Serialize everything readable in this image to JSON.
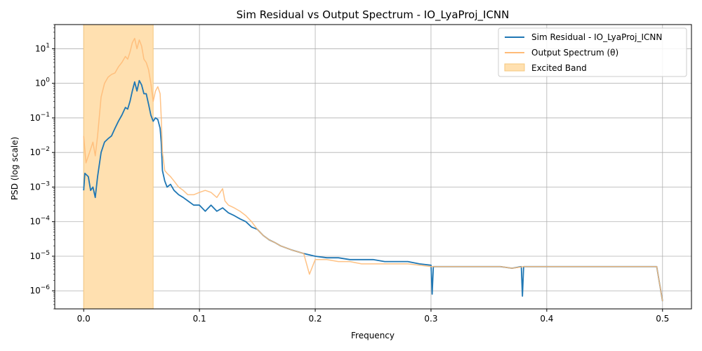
{
  "chart_data": {
    "type": "line",
    "title": "Sim Residual vs Output Spectrum - IO_LyaProj_ICNN",
    "xlabel": "Frequency",
    "ylabel": "PSD (log scale)",
    "xlim": [
      -0.025,
      0.525
    ],
    "ylim": [
      3e-07,
      50
    ],
    "yscale": "log",
    "grid": true,
    "legend_position": "top-right",
    "x_ticks": [
      {
        "value": 0.0,
        "label": "0.0"
      },
      {
        "value": 0.1,
        "label": "0.1"
      },
      {
        "value": 0.2,
        "label": "0.2"
      },
      {
        "value": 0.3,
        "label": "0.3"
      },
      {
        "value": 0.4,
        "label": "0.4"
      },
      {
        "value": 0.5,
        "label": "0.5"
      }
    ],
    "y_ticks": [
      {
        "value": 1e-06,
        "base": "10",
        "exp": "−6"
      },
      {
        "value": 1e-05,
        "base": "10",
        "exp": "−5"
      },
      {
        "value": 0.0001,
        "base": "10",
        "exp": "−4"
      },
      {
        "value": 0.001,
        "base": "10",
        "exp": "−3"
      },
      {
        "value": 0.01,
        "base": "10",
        "exp": "−2"
      },
      {
        "value": 0.1,
        "base": "10",
        "exp": "−1"
      },
      {
        "value": 1,
        "base": "10",
        "exp": "0"
      },
      {
        "value": 10,
        "base": "10",
        "exp": "1"
      }
    ],
    "band": {
      "name": "Excited Band",
      "x0": 0.0,
      "x1": 0.06,
      "color": "#ffe0b0"
    },
    "series": [
      {
        "name": "Sim Residual - IO_LyaProj_ICNN",
        "color": "#1f77b4",
        "points": [
          [
            0,
            0.0008
          ],
          [
            0.001,
            0.0025
          ],
          [
            0.004,
            0.002
          ],
          [
            0.006,
            0.0008
          ],
          [
            0.008,
            0.001
          ],
          [
            0.01,
            0.0005
          ],
          [
            0.012,
            0.002
          ],
          [
            0.015,
            0.01
          ],
          [
            0.018,
            0.02
          ],
          [
            0.021,
            0.025
          ],
          [
            0.024,
            0.03
          ],
          [
            0.027,
            0.05
          ],
          [
            0.03,
            0.08
          ],
          [
            0.033,
            0.12
          ],
          [
            0.036,
            0.2
          ],
          [
            0.038,
            0.18
          ],
          [
            0.04,
            0.3
          ],
          [
            0.042,
            0.6
          ],
          [
            0.044,
            1.1
          ],
          [
            0.046,
            0.6
          ],
          [
            0.048,
            1.2
          ],
          [
            0.05,
            0.9
          ],
          [
            0.052,
            0.5
          ],
          [
            0.054,
            0.5
          ],
          [
            0.056,
            0.25
          ],
          [
            0.058,
            0.12
          ],
          [
            0.06,
            0.08
          ],
          [
            0.062,
            0.1
          ],
          [
            0.064,
            0.09
          ],
          [
            0.066,
            0.05
          ],
          [
            0.067,
            0.02
          ],
          [
            0.068,
            0.003
          ],
          [
            0.07,
            0.0015
          ],
          [
            0.072,
            0.001
          ],
          [
            0.075,
            0.0012
          ],
          [
            0.078,
            0.0008
          ],
          [
            0.082,
            0.0006
          ],
          [
            0.086,
            0.0005
          ],
          [
            0.09,
            0.0004
          ],
          [
            0.095,
            0.0003
          ],
          [
            0.1,
            0.0003
          ],
          [
            0.105,
            0.0002
          ],
          [
            0.11,
            0.0003
          ],
          [
            0.115,
            0.0002
          ],
          [
            0.12,
            0.00025
          ],
          [
            0.125,
            0.00018
          ],
          [
            0.13,
            0.00015
          ],
          [
            0.135,
            0.00012
          ],
          [
            0.14,
            0.0001
          ],
          [
            0.145,
            7e-05
          ],
          [
            0.15,
            6e-05
          ],
          [
            0.155,
            4e-05
          ],
          [
            0.16,
            3e-05
          ],
          [
            0.165,
            2.5e-05
          ],
          [
            0.17,
            2e-05
          ],
          [
            0.18,
            1.5e-05
          ],
          [
            0.19,
            1.2e-05
          ],
          [
            0.2,
            1e-05
          ],
          [
            0.21,
            9e-06
          ],
          [
            0.22,
            9e-06
          ],
          [
            0.23,
            8e-06
          ],
          [
            0.24,
            8e-06
          ],
          [
            0.25,
            8e-06
          ],
          [
            0.26,
            7e-06
          ],
          [
            0.27,
            7e-06
          ],
          [
            0.28,
            7e-06
          ],
          [
            0.29,
            6e-06
          ],
          [
            0.3,
            5.5e-06
          ],
          [
            0.301,
            8e-07
          ],
          [
            0.302,
            5e-06
          ],
          [
            0.31,
            5e-06
          ],
          [
            0.32,
            5e-06
          ],
          [
            0.33,
            5e-06
          ],
          [
            0.34,
            5e-06
          ],
          [
            0.35,
            5e-06
          ],
          [
            0.36,
            5e-06
          ],
          [
            0.37,
            4.5e-06
          ],
          [
            0.378,
            5e-06
          ],
          [
            0.379,
            7e-07
          ],
          [
            0.38,
            5e-06
          ],
          [
            0.39,
            5e-06
          ],
          [
            0.4,
            5e-06
          ],
          [
            0.41,
            5e-06
          ],
          [
            0.42,
            5e-06
          ],
          [
            0.43,
            5e-06
          ],
          [
            0.44,
            5e-06
          ],
          [
            0.45,
            5e-06
          ],
          [
            0.46,
            5e-06
          ],
          [
            0.47,
            5e-06
          ],
          [
            0.48,
            5e-06
          ],
          [
            0.49,
            5e-06
          ],
          [
            0.495,
            5e-06
          ],
          [
            0.5,
            5e-07
          ]
        ]
      },
      {
        "name": "Output Spectrum (θ)",
        "color": "#ffbb78",
        "points": [
          [
            0,
            0.03
          ],
          [
            0.002,
            0.005
          ],
          [
            0.005,
            0.01
          ],
          [
            0.008,
            0.02
          ],
          [
            0.01,
            0.008
          ],
          [
            0.012,
            0.03
          ],
          [
            0.015,
            0.4
          ],
          [
            0.018,
            1.0
          ],
          [
            0.021,
            1.5
          ],
          [
            0.024,
            1.8
          ],
          [
            0.027,
            2.0
          ],
          [
            0.03,
            3.0
          ],
          [
            0.033,
            4.0
          ],
          [
            0.036,
            6.0
          ],
          [
            0.038,
            5.0
          ],
          [
            0.04,
            8.0
          ],
          [
            0.042,
            15.0
          ],
          [
            0.044,
            20.0
          ],
          [
            0.046,
            10.0
          ],
          [
            0.048,
            18.0
          ],
          [
            0.05,
            12.0
          ],
          [
            0.052,
            5.0
          ],
          [
            0.054,
            4.0
          ],
          [
            0.056,
            2.5
          ],
          [
            0.058,
            1.0
          ],
          [
            0.06,
            0.3
          ],
          [
            0.062,
            0.6
          ],
          [
            0.064,
            0.8
          ],
          [
            0.066,
            0.5
          ],
          [
            0.067,
            0.1
          ],
          [
            0.068,
            0.01
          ],
          [
            0.07,
            0.003
          ],
          [
            0.072,
            0.0025
          ],
          [
            0.075,
            0.002
          ],
          [
            0.078,
            0.0015
          ],
          [
            0.082,
            0.001
          ],
          [
            0.086,
            0.0008
          ],
          [
            0.09,
            0.0006
          ],
          [
            0.095,
            0.0006
          ],
          [
            0.1,
            0.0007
          ],
          [
            0.105,
            0.0008
          ],
          [
            0.11,
            0.0007
          ],
          [
            0.115,
            0.0005
          ],
          [
            0.12,
            0.0009
          ],
          [
            0.122,
            0.0004
          ],
          [
            0.125,
            0.0003
          ],
          [
            0.13,
            0.00025
          ],
          [
            0.135,
            0.0002
          ],
          [
            0.14,
            0.00015
          ],
          [
            0.145,
            0.0001
          ],
          [
            0.15,
            6e-05
          ],
          [
            0.155,
            4e-05
          ],
          [
            0.16,
            3e-05
          ],
          [
            0.165,
            2.5e-05
          ],
          [
            0.17,
            2e-05
          ],
          [
            0.18,
            1.5e-05
          ],
          [
            0.19,
            1.2e-05
          ],
          [
            0.195,
            3e-06
          ],
          [
            0.2,
            8e-06
          ],
          [
            0.21,
            8e-06
          ],
          [
            0.22,
            7e-06
          ],
          [
            0.23,
            7e-06
          ],
          [
            0.24,
            6e-06
          ],
          [
            0.25,
            6e-06
          ],
          [
            0.26,
            6e-06
          ],
          [
            0.27,
            6e-06
          ],
          [
            0.28,
            6e-06
          ],
          [
            0.29,
            5.5e-06
          ],
          [
            0.3,
            5e-06
          ],
          [
            0.31,
            5e-06
          ],
          [
            0.32,
            5e-06
          ],
          [
            0.33,
            5e-06
          ],
          [
            0.34,
            5e-06
          ],
          [
            0.35,
            5e-06
          ],
          [
            0.36,
            5e-06
          ],
          [
            0.37,
            4.5e-06
          ],
          [
            0.38,
            5e-06
          ],
          [
            0.39,
            5e-06
          ],
          [
            0.4,
            5e-06
          ],
          [
            0.41,
            5e-06
          ],
          [
            0.42,
            5e-06
          ],
          [
            0.43,
            5e-06
          ],
          [
            0.44,
            5e-06
          ],
          [
            0.45,
            5e-06
          ],
          [
            0.46,
            5e-06
          ],
          [
            0.47,
            5e-06
          ],
          [
            0.48,
            5e-06
          ],
          [
            0.49,
            5e-06
          ],
          [
            0.495,
            5e-06
          ],
          [
            0.5,
            5e-07
          ]
        ]
      }
    ]
  }
}
